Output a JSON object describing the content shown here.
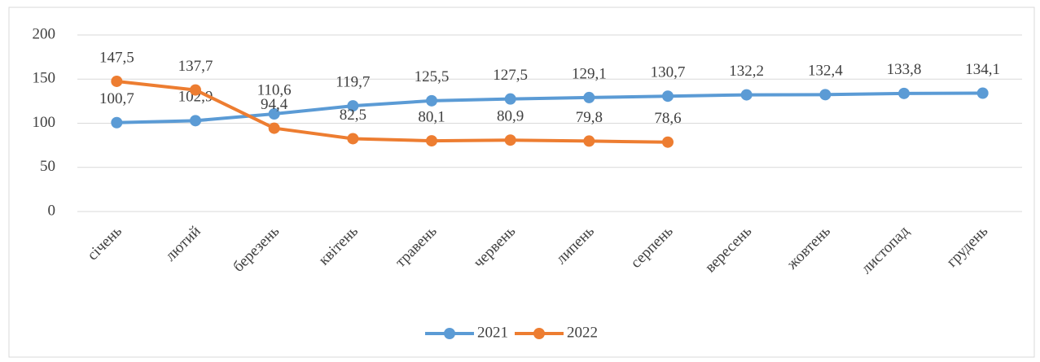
{
  "chart_data": {
    "type": "line",
    "categories": [
      "січень",
      "лютий",
      "березень",
      "квітень",
      "травень",
      "червень",
      "липень",
      "серпень",
      "вересень",
      "жовтень",
      "листопад",
      "грудень"
    ],
    "series": [
      {
        "name": "2021",
        "color": "#5b9bd5",
        "values": [
          100.7,
          102.9,
          110.6,
          119.7,
          125.5,
          127.5,
          129.1,
          130.7,
          132.2,
          132.4,
          133.8,
          134.1
        ],
        "value_labels": [
          "100,7",
          "102,9",
          "110,6",
          "119,7",
          "125,5",
          "127,5",
          "129,1",
          "130,7",
          "132,2",
          "132,4",
          "133,8",
          "134,1"
        ]
      },
      {
        "name": "2022",
        "color": "#ed7d31",
        "values": [
          147.5,
          137.7,
          94.4,
          82.5,
          80.1,
          80.9,
          79.8,
          78.6,
          null,
          null,
          null,
          null
        ],
        "value_labels": [
          "147,5",
          "137,7",
          "94,4",
          "82,5",
          "80,1",
          "80,9",
          "79,8",
          "78,6",
          null,
          null,
          null,
          null
        ]
      }
    ],
    "ylim": [
      0,
      200
    ],
    "yticks": [
      0,
      50,
      100,
      150,
      200
    ],
    "grid": true,
    "legend": "bottom"
  }
}
